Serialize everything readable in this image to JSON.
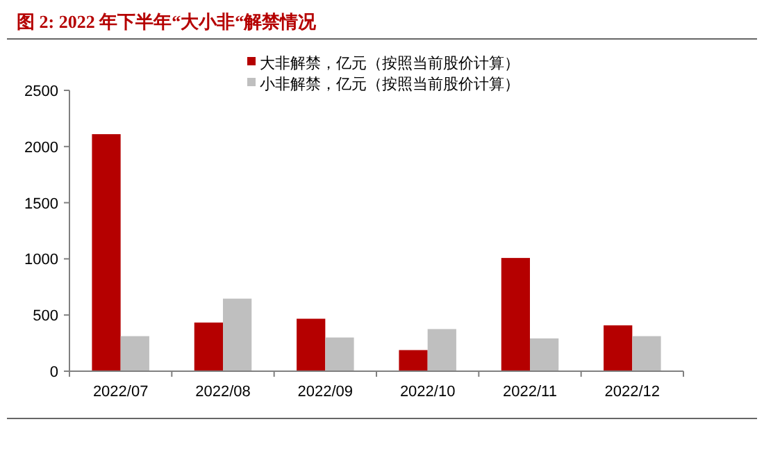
{
  "chart_data": {
    "type": "bar",
    "title": "图 2: 2022 年下半年“大小非“解禁情况",
    "categories": [
      "2022/07",
      "2022/08",
      "2022/09",
      "2022/10",
      "2022/11",
      "2022/12"
    ],
    "series": [
      {
        "name": "大非解禁，亿元（按照当前股价计算）",
        "color": "#b50000",
        "values": [
          2110,
          433,
          467,
          188,
          1008,
          408
        ]
      },
      {
        "name": "小非解禁，亿元（按照当前股价计算）",
        "color": "#bfbfbf",
        "values": [
          312,
          646,
          300,
          375,
          292,
          312
        ]
      }
    ],
    "ylim": [
      0,
      2500
    ],
    "yticks": [
      0,
      500,
      1000,
      1500,
      2000,
      2500
    ],
    "grid": false,
    "legend": "top"
  }
}
